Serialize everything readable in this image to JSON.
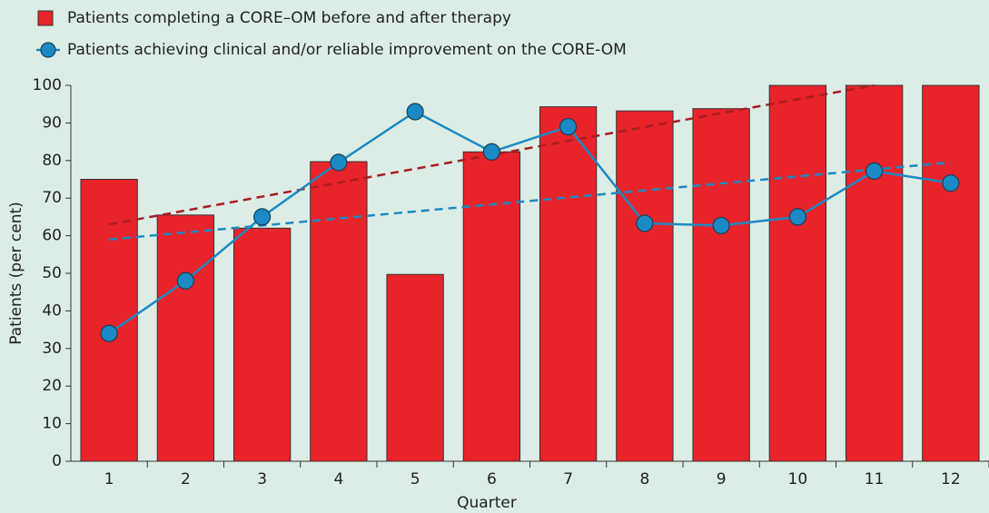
{
  "chart_data": {
    "type": "bar-line",
    "categories": [
      "1",
      "2",
      "3",
      "4",
      "5",
      "6",
      "7",
      "8",
      "9",
      "10",
      "11",
      "12"
    ],
    "series": [
      {
        "name": "Patients completing a CORE–OM before and after therapy",
        "color": "#e8232a",
        "kind": "bar",
        "values": [
          75,
          65.5,
          62,
          79.7,
          49.7,
          82.3,
          94.3,
          93.2,
          93.8,
          100,
          100,
          100
        ]
      },
      {
        "name": "Patients achieving clinical and/or reliable improvement on the CORE-OM",
        "color": "#1b8ac4",
        "kind": "line",
        "values": [
          34,
          48,
          65,
          79.5,
          93,
          82.3,
          89,
          63.3,
          62.7,
          65,
          77.2,
          74
        ]
      }
    ],
    "trendlines": [
      {
        "color": "#a81d24",
        "x": [
          1,
          11
        ],
        "values": [
          63,
          100
        ]
      },
      {
        "color": "#1b8ac4",
        "x": [
          1,
          12
        ],
        "values": [
          59,
          79.5
        ]
      }
    ],
    "xlabel": "Quarter",
    "ylabel": "Patients (per cent)",
    "ylim": [
      0,
      100
    ],
    "yticks": [
      0,
      10,
      20,
      30,
      40,
      50,
      60,
      70,
      80,
      90,
      100
    ]
  }
}
